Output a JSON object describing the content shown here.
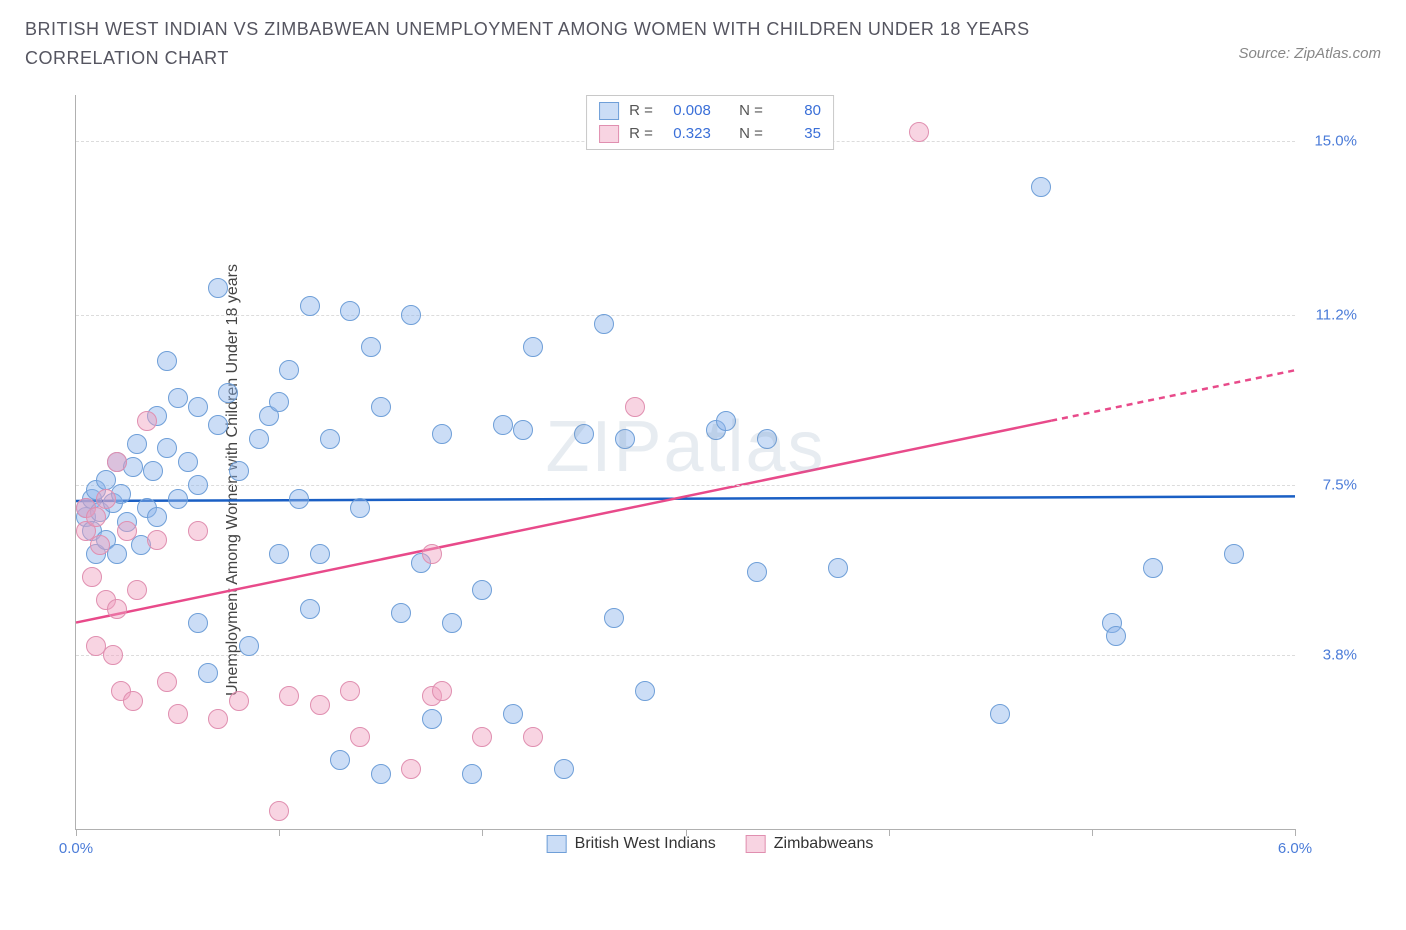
{
  "title": "BRITISH WEST INDIAN VS ZIMBABWEAN UNEMPLOYMENT AMONG WOMEN WITH CHILDREN UNDER 18 YEARS CORRELATION CHART",
  "source": "Source: ZipAtlas.com",
  "watermark": "ZIPatlas",
  "y_axis_label": "Unemployment Among Women with Children Under 18 years",
  "chart": {
    "type": "scatter",
    "background_color": "#ffffff",
    "grid_color": "#dcdcdc",
    "axis_color": "#b0b0b0",
    "xlim": [
      0.0,
      6.0
    ],
    "ylim": [
      0.0,
      16.0
    ],
    "x_ticks": [
      0.0,
      1.0,
      2.0,
      3.0,
      4.0,
      5.0,
      6.0
    ],
    "x_tick_labels": {
      "0": "0.0%",
      "6": "6.0%"
    },
    "y_ticks": [
      3.8,
      7.5,
      11.2,
      15.0
    ],
    "y_tick_labels": [
      "3.8%",
      "7.5%",
      "11.2%",
      "15.0%"
    ],
    "marker_radius": 10,
    "marker_opacity": 0.55,
    "label_fontsize": 15,
    "label_color": "#4a7bd8"
  },
  "series": [
    {
      "name": "British West Indians",
      "color_fill": "rgba(140,180,235,0.45)",
      "color_stroke": "#6f9fd8",
      "trend_color": "#1a5fc4",
      "stats": {
        "R": "0.008",
        "N": "80"
      },
      "trend": {
        "x1": 0.0,
        "y1": 7.15,
        "x2": 6.0,
        "y2": 7.25,
        "dash_from_x": null
      },
      "points": [
        [
          0.05,
          6.8
        ],
        [
          0.05,
          7.0
        ],
        [
          0.08,
          6.5
        ],
        [
          0.08,
          7.2
        ],
        [
          0.1,
          6.0
        ],
        [
          0.1,
          7.4
        ],
        [
          0.12,
          6.9
        ],
        [
          0.15,
          6.3
        ],
        [
          0.15,
          7.6
        ],
        [
          0.18,
          7.1
        ],
        [
          0.2,
          6.0
        ],
        [
          0.2,
          8.0
        ],
        [
          0.22,
          7.3
        ],
        [
          0.25,
          6.7
        ],
        [
          0.28,
          7.9
        ],
        [
          0.3,
          8.4
        ],
        [
          0.32,
          6.2
        ],
        [
          0.35,
          7.0
        ],
        [
          0.38,
          7.8
        ],
        [
          0.4,
          9.0
        ],
        [
          0.4,
          6.8
        ],
        [
          0.45,
          8.3
        ],
        [
          0.45,
          10.2
        ],
        [
          0.5,
          7.2
        ],
        [
          0.5,
          9.4
        ],
        [
          0.55,
          8.0
        ],
        [
          0.6,
          7.5
        ],
        [
          0.6,
          9.2
        ],
        [
          0.65,
          3.4
        ],
        [
          0.7,
          8.8
        ],
        [
          0.7,
          11.8
        ],
        [
          0.75,
          9.5
        ],
        [
          0.8,
          7.8
        ],
        [
          0.85,
          4.0
        ],
        [
          0.9,
          8.5
        ],
        [
          0.95,
          9.0
        ],
        [
          1.0,
          6.0
        ],
        [
          1.0,
          9.3
        ],
        [
          1.05,
          10.0
        ],
        [
          1.1,
          7.2
        ],
        [
          1.15,
          11.4
        ],
        [
          1.2,
          6.0
        ],
        [
          1.25,
          8.5
        ],
        [
          1.3,
          1.5
        ],
        [
          1.35,
          11.3
        ],
        [
          1.4,
          7.0
        ],
        [
          1.45,
          10.5
        ],
        [
          1.5,
          9.2
        ],
        [
          1.5,
          1.2
        ],
        [
          1.6,
          4.7
        ],
        [
          1.65,
          11.2
        ],
        [
          1.7,
          5.8
        ],
        [
          1.75,
          2.4
        ],
        [
          1.8,
          8.6
        ],
        [
          1.85,
          4.5
        ],
        [
          1.95,
          1.2
        ],
        [
          2.0,
          5.2
        ],
        [
          2.1,
          8.8
        ],
        [
          2.15,
          2.5
        ],
        [
          2.2,
          8.7
        ],
        [
          2.25,
          10.5
        ],
        [
          2.4,
          1.3
        ],
        [
          2.5,
          8.6
        ],
        [
          2.6,
          11.0
        ],
        [
          2.65,
          4.6
        ],
        [
          2.7,
          8.5
        ],
        [
          2.8,
          3.0
        ],
        [
          3.15,
          8.7
        ],
        [
          3.2,
          8.9
        ],
        [
          3.35,
          5.6
        ],
        [
          3.4,
          8.5
        ],
        [
          3.75,
          5.7
        ],
        [
          4.55,
          2.5
        ],
        [
          4.75,
          14.0
        ],
        [
          5.1,
          4.5
        ],
        [
          5.12,
          4.2
        ],
        [
          5.3,
          5.7
        ],
        [
          5.7,
          6.0
        ],
        [
          0.6,
          4.5
        ],
        [
          1.15,
          4.8
        ]
      ]
    },
    {
      "name": "Zimbabweans",
      "color_fill": "rgba(240,160,190,0.45)",
      "color_stroke": "#e08fb0",
      "trend_color": "#e84a8a",
      "stats": {
        "R": "0.323",
        "N": "35"
      },
      "trend": {
        "x1": 0.0,
        "y1": 4.5,
        "x2": 6.0,
        "y2": 10.0,
        "dash_from_x": 4.8
      },
      "points": [
        [
          0.05,
          6.5
        ],
        [
          0.05,
          7.0
        ],
        [
          0.08,
          5.5
        ],
        [
          0.1,
          6.8
        ],
        [
          0.1,
          4.0
        ],
        [
          0.12,
          6.2
        ],
        [
          0.15,
          5.0
        ],
        [
          0.15,
          7.2
        ],
        [
          0.18,
          3.8
        ],
        [
          0.2,
          8.0
        ],
        [
          0.2,
          4.8
        ],
        [
          0.22,
          3.0
        ],
        [
          0.25,
          6.5
        ],
        [
          0.28,
          2.8
        ],
        [
          0.3,
          5.2
        ],
        [
          0.35,
          8.9
        ],
        [
          0.4,
          6.3
        ],
        [
          0.45,
          3.2
        ],
        [
          0.5,
          2.5
        ],
        [
          0.6,
          6.5
        ],
        [
          0.7,
          2.4
        ],
        [
          0.8,
          2.8
        ],
        [
          1.0,
          0.4
        ],
        [
          1.05,
          2.9
        ],
        [
          1.2,
          2.7
        ],
        [
          1.4,
          2.0
        ],
        [
          1.65,
          1.3
        ],
        [
          1.75,
          6.0
        ],
        [
          1.75,
          2.9
        ],
        [
          1.8,
          3.0
        ],
        [
          2.0,
          2.0
        ],
        [
          2.25,
          2.0
        ],
        [
          2.75,
          9.2
        ],
        [
          4.15,
          15.2
        ],
        [
          1.35,
          3.0
        ]
      ]
    }
  ],
  "legend_stats_labels": {
    "R": "R =",
    "N": "N ="
  }
}
